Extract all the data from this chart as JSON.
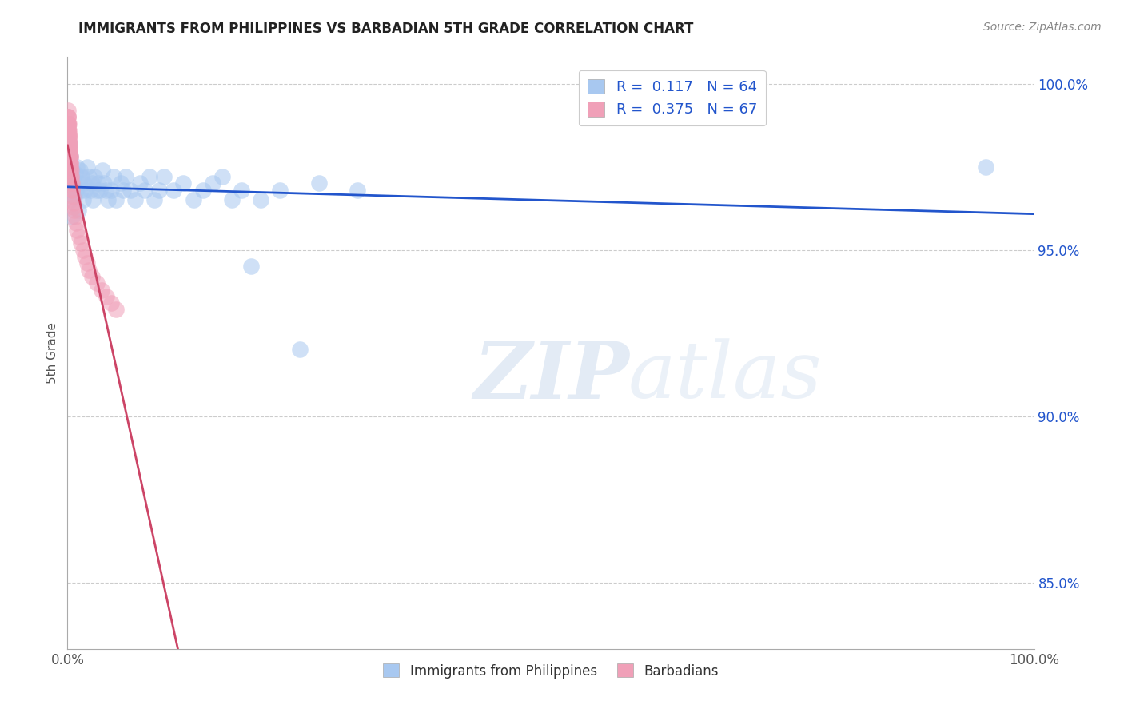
{
  "title": "IMMIGRANTS FROM PHILIPPINES VS BARBADIAN 5TH GRADE CORRELATION CHART",
  "source": "Source: ZipAtlas.com",
  "ylabel": "5th Grade",
  "legend_label1": "Immigrants from Philippines",
  "legend_label2": "Barbadians",
  "R1": 0.117,
  "N1": 64,
  "R2": 0.375,
  "N2": 67,
  "blue_color": "#a8c8f0",
  "pink_color": "#f0a0b8",
  "blue_line_color": "#2255cc",
  "pink_line_color": "#cc4466",
  "watermark_zip": "ZIP",
  "watermark_atlas": "atlas",
  "background_color": "#ffffff",
  "blue_points_x": [
    0.001,
    0.002,
    0.002,
    0.003,
    0.003,
    0.004,
    0.004,
    0.005,
    0.005,
    0.006,
    0.007,
    0.008,
    0.009,
    0.01,
    0.011,
    0.012,
    0.013,
    0.014,
    0.015,
    0.016,
    0.017,
    0.018,
    0.02,
    0.022,
    0.024,
    0.025,
    0.026,
    0.028,
    0.03,
    0.032,
    0.034,
    0.036,
    0.038,
    0.04,
    0.042,
    0.045,
    0.048,
    0.05,
    0.055,
    0.058,
    0.06,
    0.065,
    0.07,
    0.075,
    0.08,
    0.085,
    0.09,
    0.095,
    0.1,
    0.11,
    0.12,
    0.13,
    0.14,
    0.15,
    0.16,
    0.17,
    0.18,
    0.19,
    0.2,
    0.22,
    0.24,
    0.26,
    0.3,
    0.95
  ],
  "blue_points_y": [
    0.975,
    0.982,
    0.97,
    0.978,
    0.965,
    0.972,
    0.968,
    0.974,
    0.96,
    0.971,
    0.966,
    0.973,
    0.968,
    0.975,
    0.962,
    0.97,
    0.974,
    0.968,
    0.972,
    0.965,
    0.97,
    0.968,
    0.975,
    0.972,
    0.968,
    0.97,
    0.965,
    0.972,
    0.968,
    0.97,
    0.968,
    0.974,
    0.97,
    0.968,
    0.965,
    0.968,
    0.972,
    0.965,
    0.97,
    0.968,
    0.972,
    0.968,
    0.965,
    0.97,
    0.968,
    0.972,
    0.965,
    0.968,
    0.972,
    0.968,
    0.97,
    0.965,
    0.968,
    0.97,
    0.972,
    0.965,
    0.968,
    0.945,
    0.965,
    0.968,
    0.92,
    0.97,
    0.968,
    0.975
  ],
  "pink_points_x": [
    0.0002,
    0.0002,
    0.0003,
    0.0003,
    0.0004,
    0.0004,
    0.0005,
    0.0005,
    0.0006,
    0.0006,
    0.0007,
    0.0007,
    0.0008,
    0.0008,
    0.0009,
    0.0009,
    0.001,
    0.001,
    0.0011,
    0.0012,
    0.0013,
    0.0014,
    0.0015,
    0.0015,
    0.0016,
    0.0017,
    0.0018,
    0.0019,
    0.002,
    0.002,
    0.0021,
    0.0022,
    0.0023,
    0.0024,
    0.0025,
    0.0026,
    0.0027,
    0.0028,
    0.003,
    0.0032,
    0.0034,
    0.0036,
    0.0038,
    0.004,
    0.0042,
    0.0045,
    0.0048,
    0.005,
    0.0055,
    0.006,
    0.0065,
    0.007,
    0.008,
    0.009,
    0.01,
    0.012,
    0.014,
    0.016,
    0.018,
    0.02,
    0.022,
    0.025,
    0.03,
    0.035,
    0.04,
    0.045,
    0.05
  ],
  "pink_points_y": [
    0.99,
    0.987,
    0.992,
    0.988,
    0.99,
    0.986,
    0.988,
    0.984,
    0.99,
    0.986,
    0.988,
    0.982,
    0.988,
    0.984,
    0.986,
    0.98,
    0.988,
    0.984,
    0.985,
    0.982,
    0.986,
    0.98,
    0.984,
    0.98,
    0.982,
    0.98,
    0.984,
    0.978,
    0.982,
    0.978,
    0.98,
    0.978,
    0.982,
    0.976,
    0.98,
    0.978,
    0.976,
    0.978,
    0.975,
    0.974,
    0.976,
    0.972,
    0.974,
    0.97,
    0.972,
    0.968,
    0.97,
    0.968,
    0.966,
    0.964,
    0.963,
    0.962,
    0.96,
    0.958,
    0.956,
    0.954,
    0.952,
    0.95,
    0.948,
    0.946,
    0.944,
    0.942,
    0.94,
    0.938,
    0.936,
    0.934,
    0.932
  ]
}
